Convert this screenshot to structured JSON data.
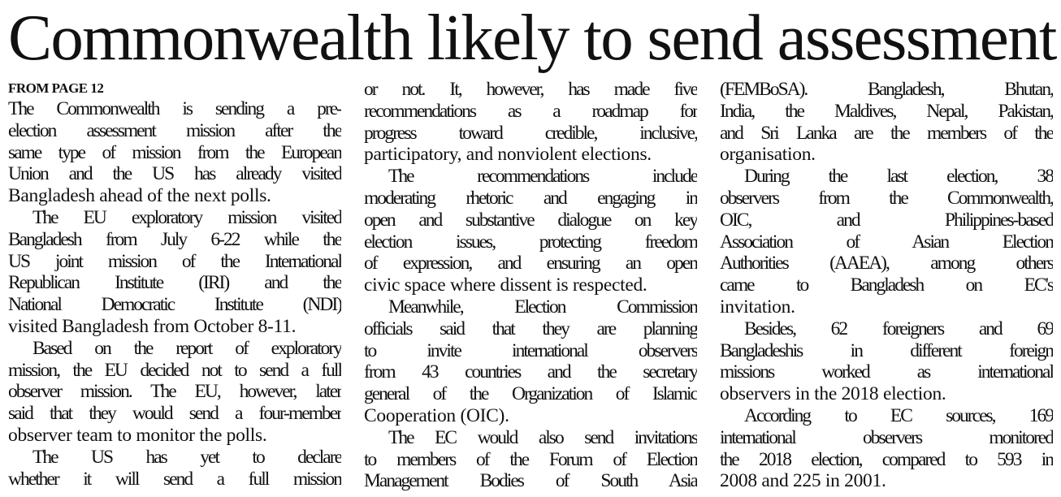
{
  "headline": "Commonwealth likely to send assessment",
  "kicker": "FROM PAGE 12",
  "columns": [
    [
      {
        "indent": false,
        "lines": [
          "The Commonwealth is sending a pre-",
          "election assessment mission after the",
          "same type of mission from the European",
          "Union and the US has already visited",
          "Bangladesh ahead of the next polls."
        ]
      },
      {
        "indent": true,
        "lines": [
          "The EU exploratory mission visited",
          "Bangladesh from July 6-22 while the",
          "US joint mission of the International",
          "Republican Institute (IRI) and the",
          "National Democratic Institute (NDI)",
          "visited Bangladesh from October 8-11."
        ]
      },
      {
        "indent": true,
        "lines": [
          "Based on the report of exploratory",
          "mission, the EU decided not to send a full",
          "observer mission. The EU, however, later",
          "said that they would send a four-member",
          "observer team to monitor the polls."
        ]
      },
      {
        "indent": true,
        "continues": true,
        "lines": [
          "The US has yet to declare",
          "whether it will send a full mission"
        ]
      }
    ],
    [
      {
        "indent": false,
        "lines": [
          "or not. It, however, has made five",
          "recommendations as a roadmap for",
          "progress toward credible, inclusive,",
          "participatory, and nonviolent elections."
        ]
      },
      {
        "indent": true,
        "lines": [
          "The recommendations include",
          "moderating rhetoric and engaging in",
          "open and substantive dialogue on key",
          "election issues, protecting freedom",
          "of expression, and ensuring an open",
          "civic space where dissent is respected."
        ]
      },
      {
        "indent": true,
        "lines": [
          "Meanwhile, Election Commission",
          "officials said that they are planning",
          "to invite international observers",
          "from 43 countries and the secretary",
          "general of the Organization of Islamic",
          "Cooperation (OIC)."
        ]
      },
      {
        "indent": true,
        "continues": true,
        "lines": [
          "The EC would also send invitations",
          "to members of the Forum of Election",
          "Management Bodies of South Asia"
        ]
      }
    ],
    [
      {
        "indent": false,
        "lines": [
          "(FEMBoSA). Bangladesh, Bhutan,",
          "India, the Maldives, Nepal, Pakistan,",
          "and Sri Lanka are the members of the",
          "organisation."
        ]
      },
      {
        "indent": true,
        "lines": [
          "During the last election, 38",
          "observers from the Commonwealth,",
          "OIC, and Philippines-based",
          "Association of Asian Election",
          "Authorities (AAEA), among others",
          "came to Bangladesh on EC's",
          "invitation."
        ]
      },
      {
        "indent": true,
        "lines": [
          "Besides, 62 foreigners and 69",
          "Bangladeshis in different foreign",
          "missions worked as international",
          "observers in the 2018 election."
        ]
      },
      {
        "indent": true,
        "lines": [
          "According to EC sources, 169",
          "international observers monitored",
          "the 2018 election, compared to 593 in",
          "2008 and 225 in 2001."
        ]
      }
    ]
  ]
}
